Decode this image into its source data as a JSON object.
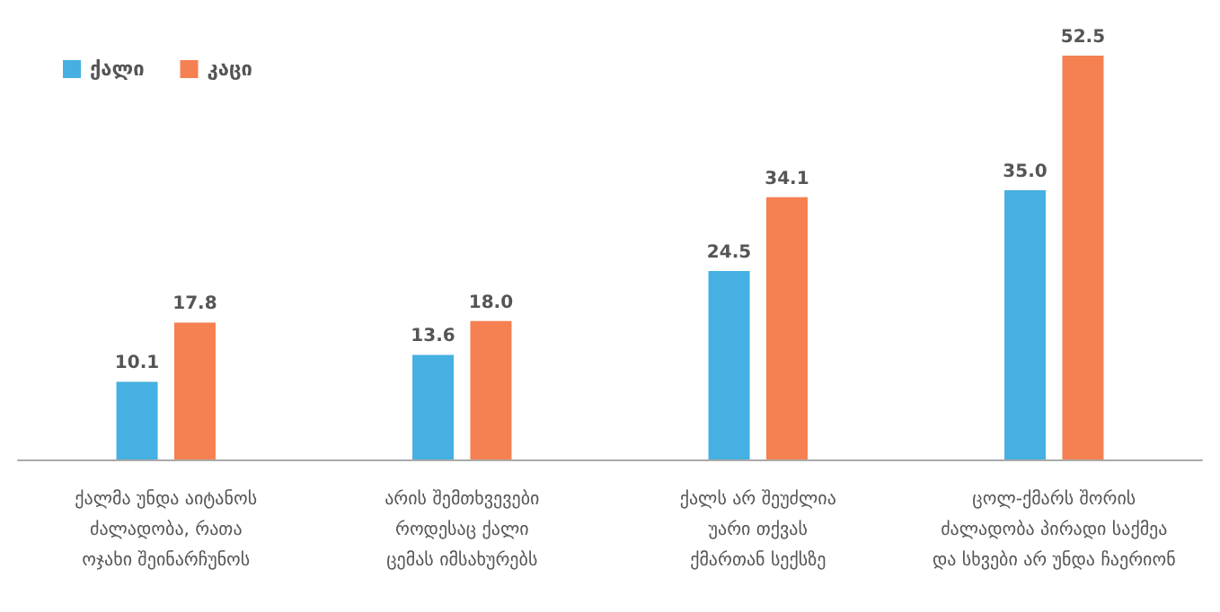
{
  "chart_data": {
    "type": "bar",
    "categories": [
      "ქალმა უნდა აიტანოს\nძალადობა, რათა\nოჯახი შეინარჩუნოს",
      "არის შემთხვევები\nროდესაც ქალი\nცემას იმსახურებს",
      "ქალს არ შეუძლია\nუარი თქვას\nქმართან სექსზე",
      "ცოლ-ქმარს შორის\nძალადობა პირადი საქმეა\nდა სხვები არ უნდა ჩაერიონ"
    ],
    "series": [
      {
        "name": "ქალი",
        "color": "#45b0e1",
        "values": [
          10.1,
          13.6,
          24.5,
          35.0
        ],
        "value_labels": [
          "10.1",
          "13.6",
          "24.5",
          "35.0"
        ]
      },
      {
        "name": "კაცი",
        "color": "#f58051",
        "values": [
          17.8,
          18.0,
          34.1,
          52.5
        ],
        "value_labels": [
          "17.8",
          "18.0",
          "34.1",
          "52.5"
        ]
      }
    ],
    "legend": "top left",
    "grid": false
  }
}
